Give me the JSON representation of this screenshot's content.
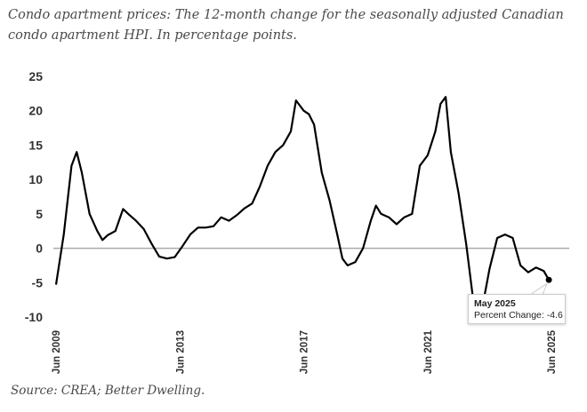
{
  "title": "Condo apartment prices: The 12-month change for the seasonally adjusted Canadian condo apartment HPI. In percentage points.",
  "source": "Source: CREA; Better Dwelling.",
  "tooltip": {
    "date": "May 2025",
    "label": "Percent Change: -4.6"
  },
  "chart_data": {
    "type": "line",
    "title": "Condo apartment prices: 12-month change, seasonally adjusted Canadian condo apartment HPI",
    "xlabel": "",
    "ylabel": "Percent Change",
    "ylim": [
      -10,
      25
    ],
    "yticks": [
      "25",
      "20",
      "15",
      "10",
      "5",
      "0",
      "-5",
      "-10"
    ],
    "ytick_values": [
      25,
      20,
      15,
      10,
      5,
      0,
      -5,
      -10
    ],
    "xticks": [
      {
        "label": "Jun 2009",
        "date": "2009-06"
      },
      {
        "label": "Jun 2013",
        "date": "2013-06"
      },
      {
        "label": "Jun 2017",
        "date": "2017-06"
      },
      {
        "label": "Jun 2021",
        "date": "2021-06"
      },
      {
        "label": "Jun 2025",
        "date": "2025-06"
      }
    ],
    "reference_line": 0,
    "series": [
      {
        "name": "Percent Change",
        "color": "#000000",
        "points": [
          [
            "2009-06",
            -5.3
          ],
          [
            "2009-09",
            2
          ],
          [
            "2009-12",
            12
          ],
          [
            "2010-02",
            14
          ],
          [
            "2010-04",
            11
          ],
          [
            "2010-07",
            5
          ],
          [
            "2010-10",
            2.5
          ],
          [
            "2010-12",
            1.2
          ],
          [
            "2011-02",
            1.9
          ],
          [
            "2011-05",
            2.5
          ],
          [
            "2011-08",
            5.7
          ],
          [
            "2011-10",
            5
          ],
          [
            "2012-01",
            4
          ],
          [
            "2012-04",
            2.8
          ],
          [
            "2012-07",
            0.7
          ],
          [
            "2012-10",
            -1.2
          ],
          [
            "2013-01",
            -1.5
          ],
          [
            "2013-04",
            -1.3
          ],
          [
            "2013-07",
            0.3
          ],
          [
            "2013-10",
            2
          ],
          [
            "2014-01",
            3
          ],
          [
            "2014-04",
            3
          ],
          [
            "2014-07",
            3.2
          ],
          [
            "2014-10",
            4.5
          ],
          [
            "2015-01",
            4
          ],
          [
            "2015-04",
            4.8
          ],
          [
            "2015-07",
            5.8
          ],
          [
            "2015-10",
            6.5
          ],
          [
            "2016-01",
            9
          ],
          [
            "2016-04",
            12
          ],
          [
            "2016-07",
            14
          ],
          [
            "2016-10",
            15
          ],
          [
            "2017-01",
            17
          ],
          [
            "2017-03",
            21.5
          ],
          [
            "2017-06",
            20
          ],
          [
            "2017-08",
            19.5
          ],
          [
            "2017-10",
            18
          ],
          [
            "2018-01",
            11
          ],
          [
            "2018-04",
            7
          ],
          [
            "2018-07",
            2
          ],
          [
            "2018-09",
            -1.5
          ],
          [
            "2018-11",
            -2.5
          ],
          [
            "2019-02",
            -2
          ],
          [
            "2019-05",
            0
          ],
          [
            "2019-08",
            4
          ],
          [
            "2019-10",
            6.2
          ],
          [
            "2019-12",
            5
          ],
          [
            "2020-03",
            4.5
          ],
          [
            "2020-06",
            3.5
          ],
          [
            "2020-09",
            4.5
          ],
          [
            "2020-12",
            5
          ],
          [
            "2021-03",
            12
          ],
          [
            "2021-06",
            13.5
          ],
          [
            "2021-09",
            17
          ],
          [
            "2021-11",
            21
          ],
          [
            "2022-01",
            22
          ],
          [
            "2022-03",
            14
          ],
          [
            "2022-06",
            8
          ],
          [
            "2022-09",
            0.5
          ],
          [
            "2022-12",
            -8.5
          ],
          [
            "2023-03",
            -9
          ],
          [
            "2023-06",
            -3
          ],
          [
            "2023-09",
            1.5
          ],
          [
            "2023-12",
            2
          ],
          [
            "2024-03",
            1.5
          ],
          [
            "2024-06",
            -2.5
          ],
          [
            "2024-09",
            -3.5
          ],
          [
            "2024-12",
            -2.8
          ],
          [
            "2025-03",
            -3.3
          ],
          [
            "2025-05",
            -4.6
          ]
        ]
      }
    ],
    "highlight": {
      "date": "2025-05",
      "value": -4.6
    }
  }
}
